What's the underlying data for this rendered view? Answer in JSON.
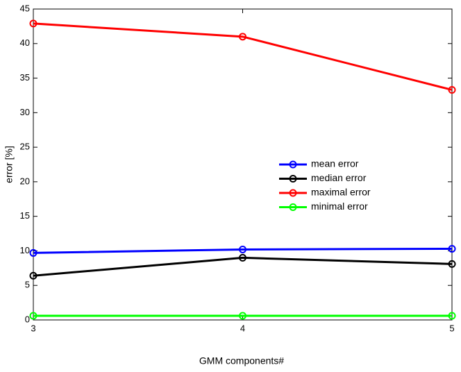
{
  "chart_data": {
    "type": "line",
    "x_label": "GMM components#",
    "y_label": "error [%]",
    "x": [
      3,
      4,
      5
    ],
    "series": [
      {
        "name": "mean error",
        "color": "#0000ff",
        "values": [
          9.7,
          10.2,
          10.3
        ]
      },
      {
        "name": "median error",
        "color": "#000000",
        "values": [
          6.4,
          9.0,
          8.1
        ]
      },
      {
        "name": "maximal error",
        "color": "#ff0000",
        "values": [
          42.9,
          41.0,
          33.3
        ]
      },
      {
        "name": "minimal error",
        "color": "#00ff00",
        "values": [
          0.6,
          0.6,
          0.6
        ]
      }
    ],
    "xlim": [
      3,
      5
    ],
    "xticks": [
      3,
      4,
      5
    ],
    "ylim": [
      0,
      45
    ],
    "yticks": [
      0,
      5,
      10,
      15,
      20,
      25,
      30,
      35,
      40,
      45
    ],
    "grid": false,
    "legend_position": "center-right"
  }
}
